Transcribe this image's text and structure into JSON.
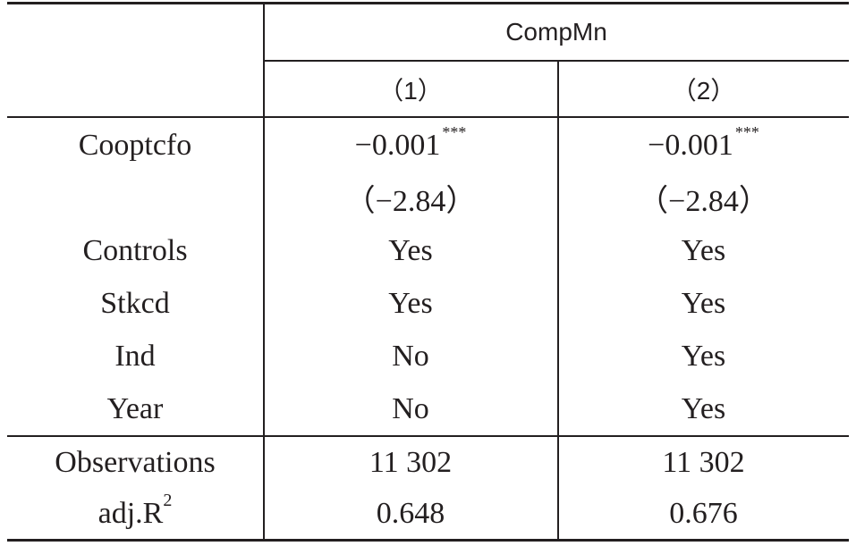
{
  "header": {
    "group_label": "CompMn",
    "columns": [
      "（1）",
      "（2）"
    ]
  },
  "rows": [
    {
      "label": "Cooptcfo",
      "values": [
        "−0.001",
        "−0.001"
      ],
      "stars": [
        "***",
        "***"
      ]
    },
    {
      "label": "",
      "values": [
        "（−2.84）",
        "（−2.84）"
      ]
    },
    {
      "label": "Controls",
      "values": [
        "Yes",
        "Yes"
      ]
    },
    {
      "label": "Stkcd",
      "values": [
        "Yes",
        "Yes"
      ]
    },
    {
      "label": "Ind",
      "values": [
        "No",
        "Yes"
      ]
    },
    {
      "label": "Year",
      "values": [
        "No",
        "Yes"
      ]
    }
  ],
  "footer_rows": [
    {
      "label": "Observations",
      "values": [
        "11 302",
        "11 302"
      ]
    },
    {
      "label_main": "adj.R",
      "label_sup": "2",
      "values": [
        "0.648",
        "0.676"
      ]
    }
  ]
}
